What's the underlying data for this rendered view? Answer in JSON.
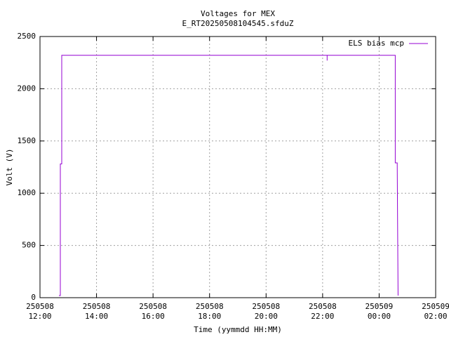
{
  "chart_data": {
    "type": "line",
    "title": "Voltages for MEX",
    "subtitle": "E_RT20250508104545.sfduZ",
    "x_label": "Time (yymmdd HH:MM)",
    "y_label": "Volt (V)",
    "x": [
      12.67,
      12.72,
      12.72,
      12.77,
      12.77,
      16.0,
      18.0,
      22.16,
      22.16,
      22.16,
      24.57,
      24.57,
      24.64,
      24.64,
      24.67
    ],
    "series": [
      {
        "name": "ELS bias mcp",
        "color": "#9400d3",
        "values": [
          20,
          20,
          1280,
          1280,
          2320,
          2320,
          2320,
          2320,
          2270,
          2320,
          2320,
          1290,
          1290,
          1280,
          20
        ]
      }
    ],
    "xlim": [
      12,
      26
    ],
    "xticks": [
      {
        "value": 12,
        "label": "250508 12:00"
      },
      {
        "value": 14,
        "label": "250508 14:00"
      },
      {
        "value": 16,
        "label": "250508 16:00"
      },
      {
        "value": 18,
        "label": "250508 18:00"
      },
      {
        "value": 20,
        "label": "250508 20:00"
      },
      {
        "value": 22,
        "label": "250508 22:00"
      },
      {
        "value": 24,
        "label": "250509 00:00"
      },
      {
        "value": 26,
        "label": "250509 02:00"
      }
    ],
    "ylim": [
      0,
      2500
    ],
    "yticks": [
      0,
      500,
      1000,
      1500,
      2000,
      2500
    ],
    "grid": true,
    "legend": "top-right"
  }
}
